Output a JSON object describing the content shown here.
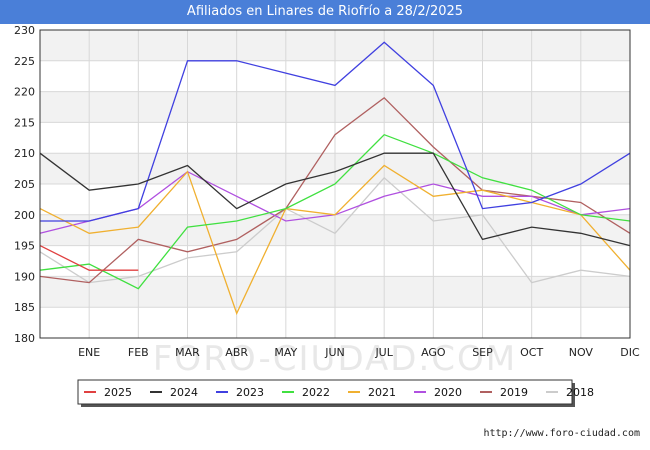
{
  "page": {
    "title": "Afiliados en Linares de Riofrío a 28/2/2025",
    "footer_url": "http://www.foro-ciudad.com",
    "watermark": "FORO-CIUDAD.COM"
  },
  "chart_data": {
    "type": "line",
    "title": "Afiliados en Linares de Riofrío a 28/2/2025",
    "xlabel": "",
    "ylabel": "",
    "categories": [
      "",
      "ENE",
      "FEB",
      "MAR",
      "ABR",
      "MAY",
      "JUN",
      "JUL",
      "AGO",
      "SEP",
      "OCT",
      "NOV",
      "DIC"
    ],
    "ylim": [
      180,
      230
    ],
    "yticks": [
      180,
      185,
      190,
      195,
      200,
      205,
      210,
      215,
      220,
      225,
      230
    ],
    "grid": true,
    "legend_position": "bottom",
    "series": [
      {
        "name": "2025",
        "color": "#e04040",
        "values": [
          195,
          191,
          191,
          null,
          null,
          null,
          null,
          null,
          null,
          null,
          null,
          null,
          null
        ]
      },
      {
        "name": "2024",
        "color": "#333333",
        "values": [
          210,
          204,
          205,
          208,
          201,
          205,
          207,
          210,
          210,
          196,
          198,
          197,
          195
        ]
      },
      {
        "name": "2023",
        "color": "#4040e0",
        "values": [
          199,
          199,
          201,
          225,
          225,
          223,
          221,
          228,
          221,
          201,
          202,
          205,
          210
        ]
      },
      {
        "name": "2022",
        "color": "#40e040",
        "values": [
          191,
          192,
          188,
          198,
          199,
          201,
          205,
          213,
          210,
          206,
          204,
          200,
          199
        ]
      },
      {
        "name": "2021",
        "color": "#f0b030",
        "values": [
          201,
          197,
          198,
          207,
          184,
          201,
          200,
          208,
          203,
          204,
          202,
          200,
          191
        ]
      },
      {
        "name": "2020",
        "color": "#b050e0",
        "values": [
          197,
          199,
          201,
          207,
          203,
          199,
          200,
          203,
          205,
          203,
          203,
          200,
          201
        ]
      },
      {
        "name": "2019",
        "color": "#b06060",
        "values": [
          190,
          189,
          196,
          194,
          196,
          201,
          213,
          219,
          211,
          204,
          203,
          202,
          197
        ]
      },
      {
        "name": "2018",
        "color": "#cccccc",
        "values": [
          194,
          189,
          190,
          193,
          194,
          201,
          197,
          206,
          199,
          200,
          189,
          191,
          190
        ]
      }
    ]
  }
}
